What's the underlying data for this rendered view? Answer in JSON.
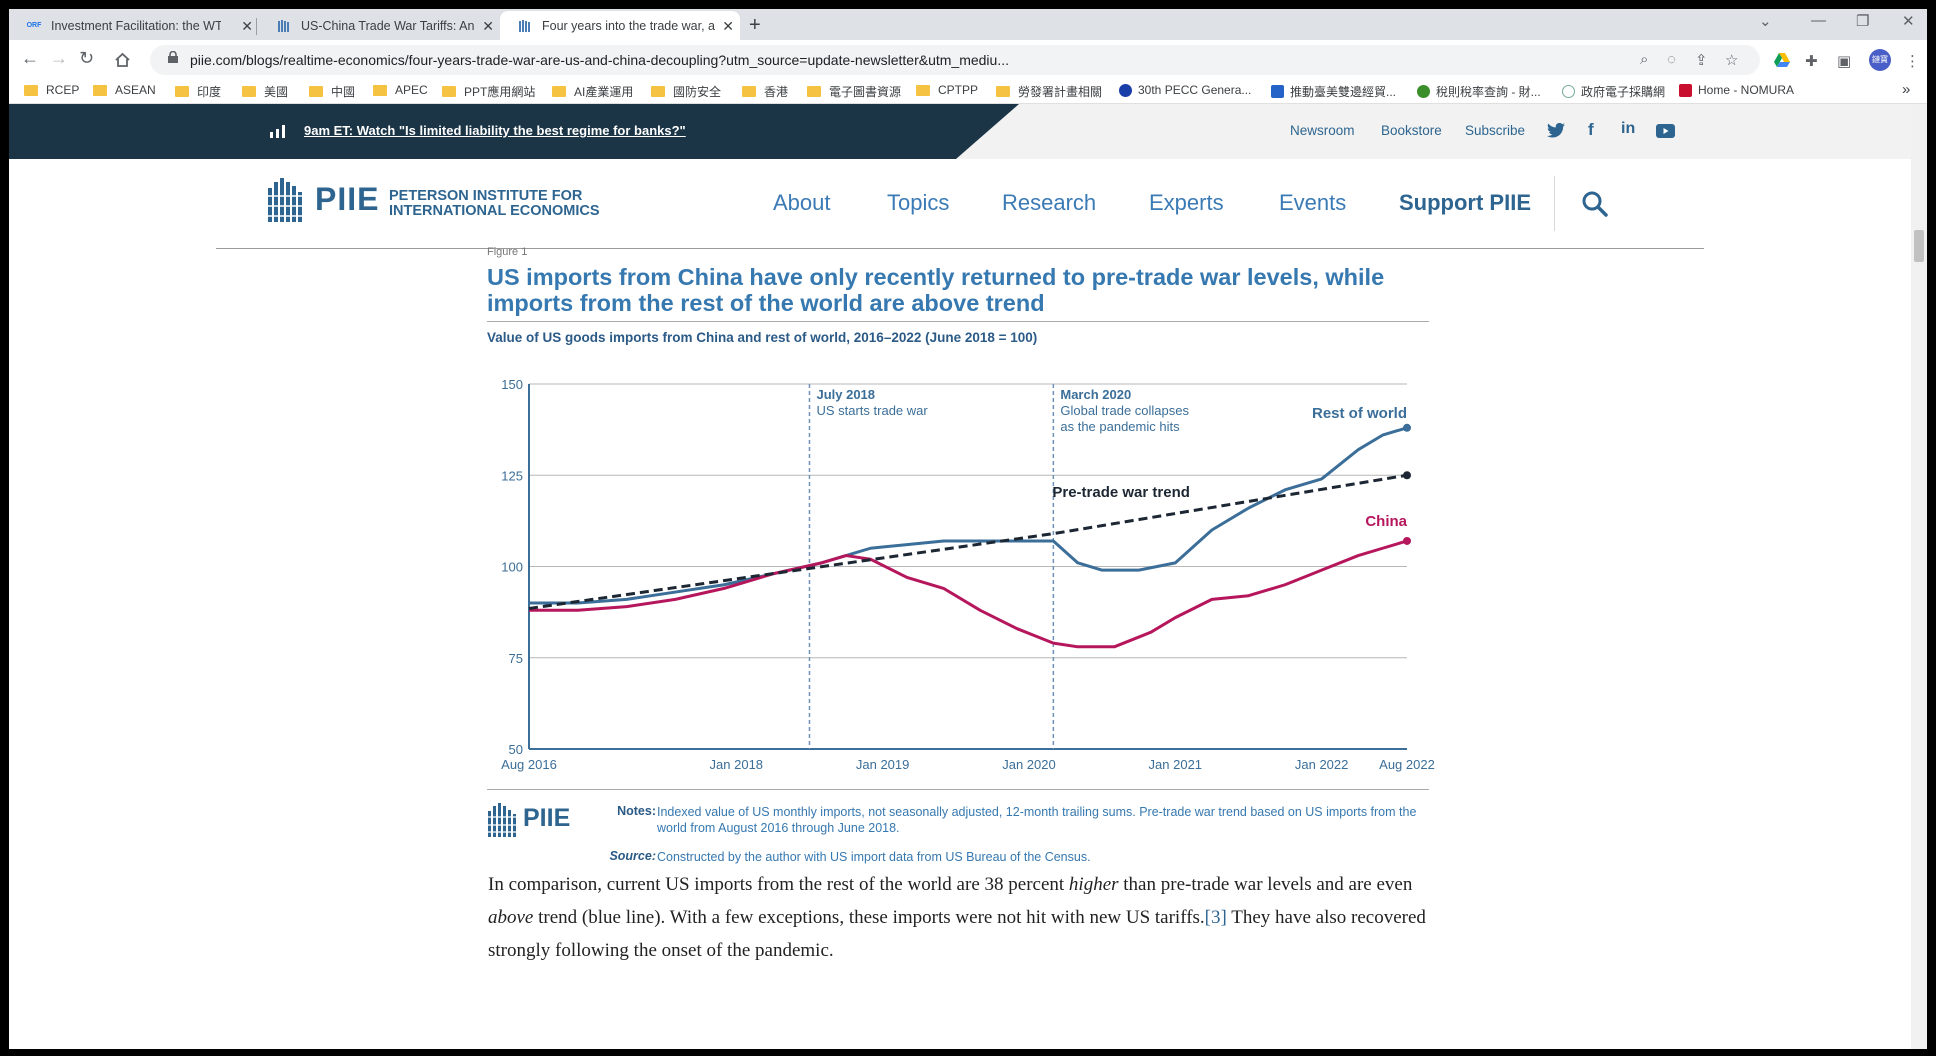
{
  "browser": {
    "tabs": [
      {
        "title": "Investment Facilitation: the WTO",
        "favicon": "ORF"
      },
      {
        "title": "US-China Trade War Tariffs: An",
        "favicon": "PIIE"
      },
      {
        "title": "Four years into the trade war, a",
        "favicon": "PIIE"
      }
    ],
    "url": "piie.com/blogs/realtime-economics/four-years-trade-war-are-us-and-china-decoupling?utm_source=update-newsletter&utm_mediu...",
    "profile_label": "鏈寶",
    "bookmarks": [
      "RCEP",
      "ASEAN",
      "印度",
      "美國",
      "中國",
      "APEC",
      "PPT應用網站",
      "AI產業運用",
      "國防安全",
      "香港",
      "電子圖書資源",
      "CPTPP",
      "勞發署計畫相關",
      "30th PECC Genera...",
      "推動臺美雙邊經貿...",
      "稅則稅率查詢 - 財...",
      "政府電子採購網",
      "Home - NOMURA"
    ]
  },
  "alert": {
    "text": "9am ET: Watch \"Is limited liability the best regime for banks?\""
  },
  "utility_links": [
    "Newsroom",
    "Bookstore",
    "Subscribe"
  ],
  "logo": {
    "name": "PIIE",
    "line1": "PETERSON INSTITUTE FOR",
    "line2": "INTERNATIONAL ECONOMICS"
  },
  "nav": [
    "About",
    "Topics",
    "Research",
    "Experts",
    "Events",
    "Support PIIE"
  ],
  "figure": {
    "label": "Figure 1",
    "title": "US imports from China have only recently returned to pre-trade war levels, while imports from the rest of the world are above trend",
    "subtitle": "Value of US goods imports from China and rest of world, 2016–2022 (June 2018 = 100)",
    "notes_label": "Notes:",
    "notes": "Indexed value of US monthly imports, not seasonally adjusted, 12-month trailing sums. Pre-trade war trend based on US imports from the world from August 2016 through June 2018.",
    "source_label": "Source:",
    "source": "Constructed by the author with US import data from US Bureau of the Census.",
    "footer_logo": "PIIE"
  },
  "chart_data": {
    "type": "line",
    "title": "US imports from China have only recently returned to pre-trade war levels, while imports from the rest of the world are above trend",
    "subtitle": "Value of US goods imports from China and rest of world, 2016–2022 (June 2018 = 100)",
    "x_tick_labels": [
      "Aug 2016",
      "Jan 2018",
      "Jan 2019",
      "Jan 2020",
      "Jan 2021",
      "Jan 2022",
      "Aug 2022"
    ],
    "x_ticks": [
      "2016-08",
      "2018-01",
      "2019-01",
      "2020-01",
      "2021-01",
      "2022-01",
      "2022-08"
    ],
    "y_ticks": [
      50,
      75,
      100,
      125,
      150
    ],
    "ylim": [
      50,
      150
    ],
    "xlim": [
      "2016-08",
      "2022-08"
    ],
    "grid": true,
    "annotations": [
      {
        "x": "2018-07",
        "title": "July 2018",
        "text": "US starts trade war"
      },
      {
        "x": "2020-03",
        "title": "March 2020",
        "text": "Global trade collapses as the pandemic hits"
      }
    ],
    "series": [
      {
        "name": "Rest of world",
        "color": "#3b6e98",
        "style": "solid",
        "x": [
          "2016-08",
          "2016-12",
          "2017-04",
          "2017-08",
          "2017-12",
          "2018-04",
          "2018-08",
          "2018-10",
          "2018-12",
          "2019-03",
          "2019-06",
          "2019-09",
          "2019-12",
          "2020-03",
          "2020-05",
          "2020-07",
          "2020-10",
          "2021-01",
          "2021-04",
          "2021-07",
          "2021-10",
          "2022-01",
          "2022-04",
          "2022-06",
          "2022-08"
        ],
        "y": [
          90,
          90,
          91,
          93,
          95,
          98,
          101,
          103,
          105,
          106,
          107,
          107,
          107,
          107,
          101,
          99,
          99,
          101,
          110,
          116,
          121,
          124,
          132,
          136,
          138
        ]
      },
      {
        "name": "China",
        "color": "#b5165c",
        "style": "solid",
        "x": [
          "2016-08",
          "2016-12",
          "2017-04",
          "2017-08",
          "2017-12",
          "2018-04",
          "2018-08",
          "2018-10",
          "2018-12",
          "2019-03",
          "2019-06",
          "2019-09",
          "2019-12",
          "2020-03",
          "2020-05",
          "2020-08",
          "2020-11",
          "2021-01",
          "2021-04",
          "2021-07",
          "2021-10",
          "2022-01",
          "2022-04",
          "2022-06",
          "2022-08"
        ],
        "y": [
          88,
          88,
          89,
          91,
          94,
          98,
          101,
          103,
          102,
          97,
          94,
          88,
          83,
          79,
          78,
          78,
          82,
          86,
          91,
          92,
          95,
          99,
          103,
          105,
          107
        ]
      },
      {
        "name": "Pre-trade war trend",
        "color": "#1c2733",
        "style": "dashed",
        "x": [
          "2016-08",
          "2018-06",
          "2020-03",
          "2022-08"
        ],
        "y": [
          88.5,
          99,
          109,
          125
        ]
      }
    ]
  },
  "body": {
    "p1": "In comparison, current US imports from the rest of the world are 38 percent ",
    "p1_em": "higher",
    "p2": " than pre-trade war levels and are even ",
    "p2_em": "above",
    "p3": " trend (blue line). With a few exceptions, these imports were not hit with new US tariffs.",
    "fn": "[3]",
    "p4": " They have also recovered strongly following the onset of the pandemic."
  }
}
